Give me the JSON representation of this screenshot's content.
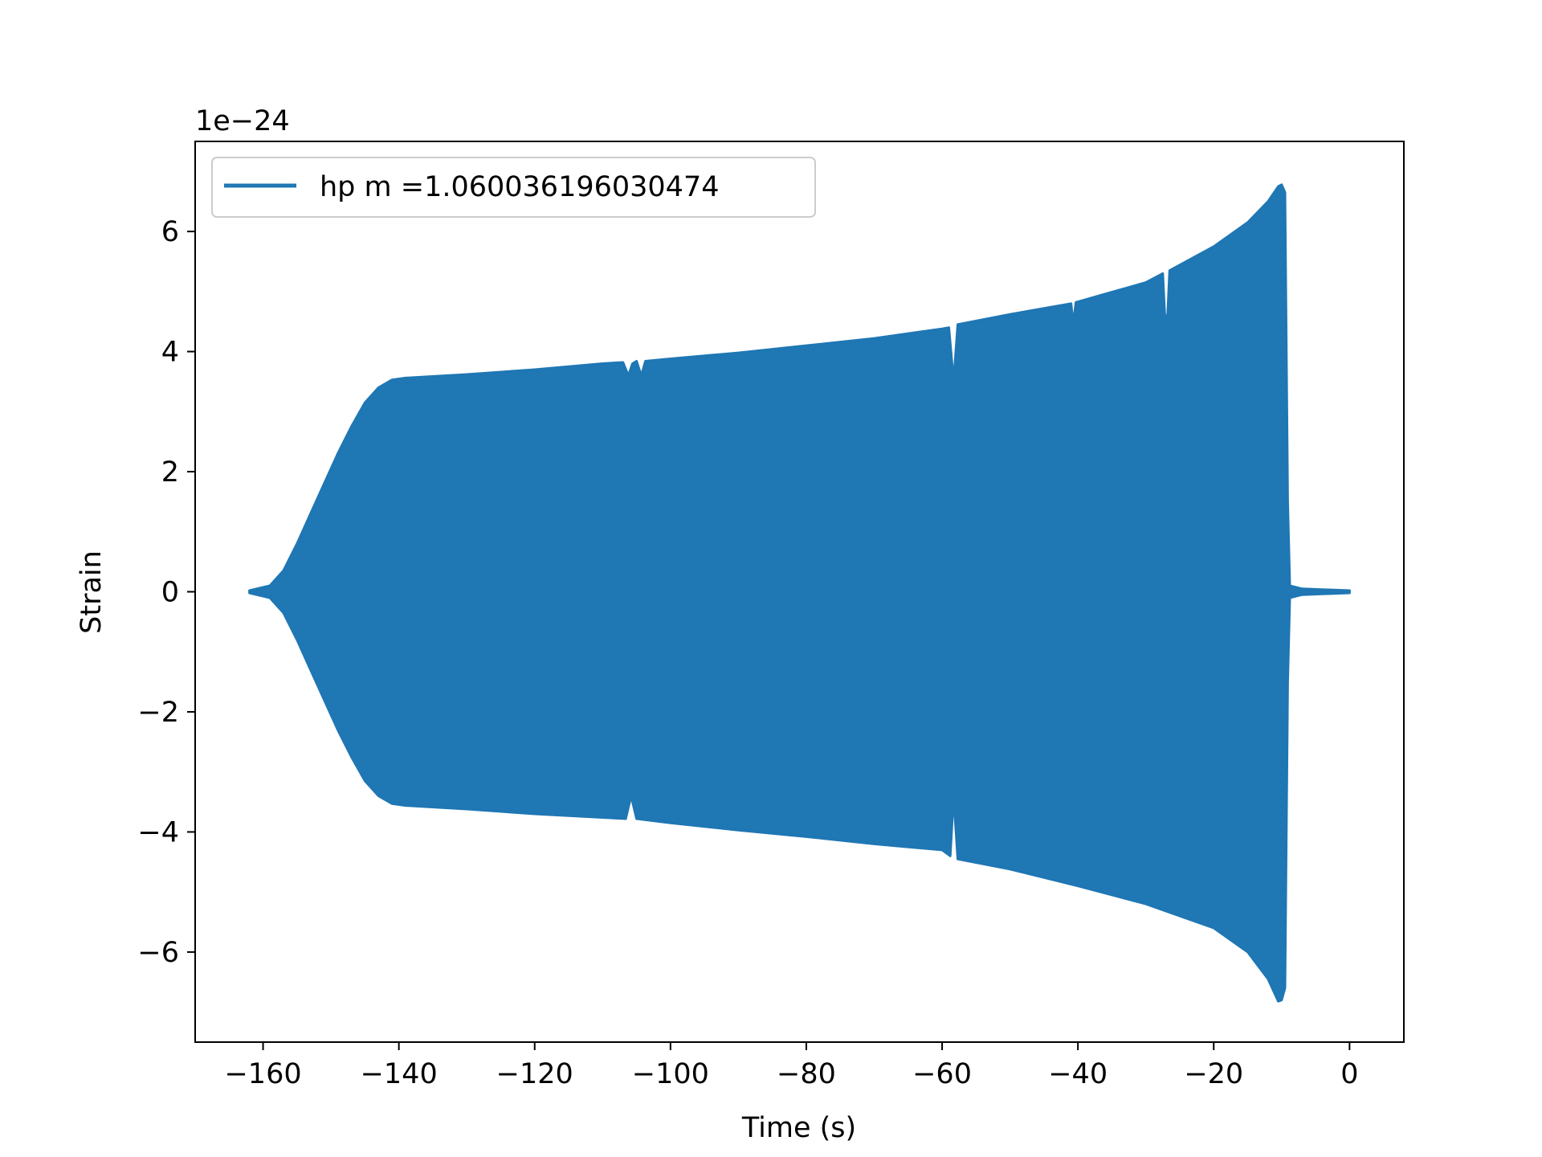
{
  "chart_data": {
    "type": "area",
    "title": "",
    "xlabel": "Time (s)",
    "ylabel": "Strain",
    "offset_text": "1e−24",
    "xlim": [
      -170,
      8
    ],
    "ylim": [
      -7.5,
      7.5
    ],
    "xticks": [
      -160,
      -140,
      -120,
      -100,
      -80,
      -60,
      -40,
      -20,
      0
    ],
    "xtick_labels": [
      "−160",
      "−140",
      "−120",
      "−100",
      "−80",
      "−60",
      "−40",
      "−20",
      "0"
    ],
    "yticks": [
      -6,
      -4,
      -2,
      0,
      2,
      4,
      6
    ],
    "ytick_labels": [
      "−6",
      "−4",
      "−2",
      "0",
      "2",
      "4",
      "6"
    ],
    "grid": false,
    "legend": {
      "placement": "upper-left",
      "entries": [
        "hp m =1.060036196030474"
      ]
    },
    "series": [
      {
        "name": "hp m =1.060036196030474",
        "color": "#1f77b4",
        "envelope_upper": [
          [
            -162,
            0.02
          ],
          [
            -159,
            0.1
          ],
          [
            -157,
            0.35
          ],
          [
            -155,
            0.8
          ],
          [
            -153,
            1.3
          ],
          [
            -151,
            1.8
          ],
          [
            -149,
            2.3
          ],
          [
            -147,
            2.75
          ],
          [
            -145,
            3.15
          ],
          [
            -143,
            3.4
          ],
          [
            -141,
            3.53
          ],
          [
            -139,
            3.56
          ],
          [
            -130,
            3.62
          ],
          [
            -120,
            3.7
          ],
          [
            -110,
            3.8
          ],
          [
            -107,
            3.82
          ],
          [
            -106.2,
            3.6
          ],
          [
            -105.6,
            3.8
          ],
          [
            -105,
            3.84
          ],
          [
            -104.3,
            3.6
          ],
          [
            -103.7,
            3.84
          ],
          [
            -100,
            3.88
          ],
          [
            -90,
            3.98
          ],
          [
            -80,
            4.1
          ],
          [
            -70,
            4.22
          ],
          [
            -60,
            4.38
          ],
          [
            -59,
            4.4
          ],
          [
            -58.3,
            3.5
          ],
          [
            -57.7,
            4.45
          ],
          [
            -50,
            4.62
          ],
          [
            -41,
            4.8
          ],
          [
            -40.7,
            4.45
          ],
          [
            -40.3,
            4.82
          ],
          [
            -30,
            5.15
          ],
          [
            -27.5,
            5.3
          ],
          [
            -27.2,
            4.6
          ],
          [
            -26.8,
            4.6
          ],
          [
            -26.5,
            5.35
          ],
          [
            -20,
            5.75
          ],
          [
            -15,
            6.15
          ],
          [
            -12,
            6.5
          ],
          [
            -10.5,
            6.75
          ],
          [
            -10,
            6.78
          ],
          [
            -9.5,
            6.65
          ],
          [
            -9.1,
            1.5
          ],
          [
            -8.8,
            0.1
          ],
          [
            -7,
            0.05
          ],
          [
            0,
            0.02
          ]
        ],
        "envelope_lower": [
          [
            -162,
            -0.02
          ],
          [
            -159,
            -0.1
          ],
          [
            -157,
            -0.35
          ],
          [
            -155,
            -0.8
          ],
          [
            -153,
            -1.3
          ],
          [
            -151,
            -1.8
          ],
          [
            -149,
            -2.3
          ],
          [
            -147,
            -2.75
          ],
          [
            -145,
            -3.15
          ],
          [
            -143,
            -3.4
          ],
          [
            -141,
            -3.53
          ],
          [
            -139,
            -3.56
          ],
          [
            -130,
            -3.62
          ],
          [
            -120,
            -3.7
          ],
          [
            -110,
            -3.76
          ],
          [
            -106.6,
            -3.78
          ],
          [
            -105.8,
            -3.4
          ],
          [
            -105,
            -3.78
          ],
          [
            -100,
            -3.85
          ],
          [
            -90,
            -3.97
          ],
          [
            -80,
            -4.08
          ],
          [
            -70,
            -4.2
          ],
          [
            -60,
            -4.3
          ],
          [
            -58.8,
            -4.4
          ],
          [
            -58.3,
            -3.4
          ],
          [
            -57.7,
            -4.45
          ],
          [
            -50,
            -4.62
          ],
          [
            -40,
            -4.9
          ],
          [
            -30,
            -5.2
          ],
          [
            -20,
            -5.6
          ],
          [
            -15,
            -6.0
          ],
          [
            -12,
            -6.45
          ],
          [
            -10.5,
            -6.82
          ],
          [
            -10,
            -6.8
          ],
          [
            -9.5,
            -6.6
          ],
          [
            -9.1,
            -1.5
          ],
          [
            -8.8,
            -0.1
          ],
          [
            -7,
            -0.05
          ],
          [
            0,
            -0.02
          ]
        ]
      }
    ]
  }
}
